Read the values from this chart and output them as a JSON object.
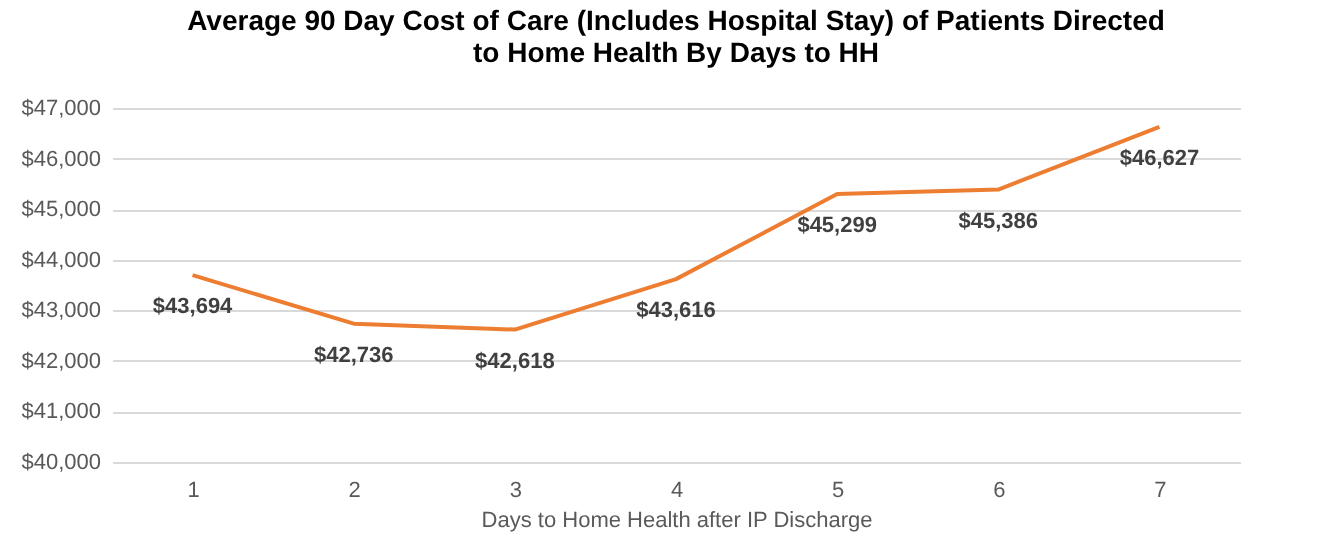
{
  "chart_data": {
    "type": "line",
    "title": "Average 90 Day Cost of Care (Includes Hospital Stay) of Patients Directed\nto Home Health By Days to HH",
    "xlabel": "Days to Home Health after IP Discharge",
    "categories": [
      "1",
      "2",
      "3",
      "4",
      "5",
      "6",
      "7"
    ],
    "series": [
      {
        "color": "#ed7d31",
        "values": [
          43694,
          42736,
          42618,
          43616,
          45299,
          45386,
          46627
        ],
        "value_labels": [
          "$43,694",
          "$42,736",
          "$42,618",
          "$43,616",
          "$45,299",
          "$45,386",
          "$46,627"
        ]
      }
    ],
    "ylim": [
      40000,
      47000
    ],
    "yticks": [
      {
        "value": 40000,
        "label": "$40,000"
      },
      {
        "value": 41000,
        "label": "$41,000"
      },
      {
        "value": 42000,
        "label": "$42,000"
      },
      {
        "value": 43000,
        "label": "$43,000"
      },
      {
        "value": 44000,
        "label": "$44,000"
      },
      {
        "value": 45000,
        "label": "$45,000"
      },
      {
        "value": 46000,
        "label": "$46,000"
      },
      {
        "value": 47000,
        "label": "$47,000"
      }
    ],
    "grid": "y",
    "legend": false,
    "marker": "none",
    "line_style": "solid"
  }
}
